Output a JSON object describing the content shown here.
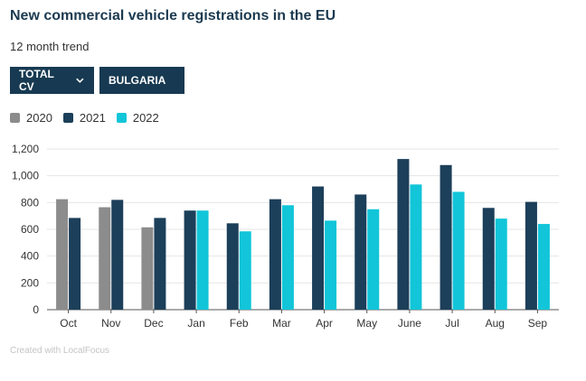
{
  "title": "New commercial vehicle registrations in the EU",
  "subtitle": "12 month trend",
  "filters": {
    "vehicle_type": "TOTAL CV",
    "country": "BULGARIA"
  },
  "footer": "Created with LocalFocus",
  "colors": {
    "2020": "#8c8c8c",
    "2021": "#1c3f5a",
    "2022": "#12c5d8"
  },
  "chart_data": {
    "type": "bar",
    "title": "New commercial vehicle registrations in the EU",
    "xlabel": "",
    "ylabel": "",
    "ylim": [
      0,
      1200
    ],
    "yticks": [
      "0",
      "200",
      "400",
      "600",
      "800",
      "1,000",
      "1,200"
    ],
    "ytick_values": [
      0,
      200,
      400,
      600,
      800,
      1000,
      1200
    ],
    "grid": true,
    "legend_position": "top-left",
    "categories": [
      "Oct",
      "Nov",
      "Dec",
      "Jan",
      "Feb",
      "Mar",
      "Apr",
      "May",
      "June",
      "Jul",
      "Aug",
      "Sep"
    ],
    "series": [
      {
        "name": "2020",
        "values": [
          825,
          765,
          615,
          null,
          null,
          null,
          null,
          null,
          null,
          null,
          null,
          null
        ]
      },
      {
        "name": "2021",
        "values": [
          685,
          820,
          685,
          740,
          645,
          825,
          920,
          860,
          1125,
          1080,
          760,
          805
        ]
      },
      {
        "name": "2022",
        "values": [
          null,
          null,
          null,
          740,
          585,
          780,
          665,
          750,
          935,
          880,
          680,
          640
        ]
      }
    ]
  }
}
